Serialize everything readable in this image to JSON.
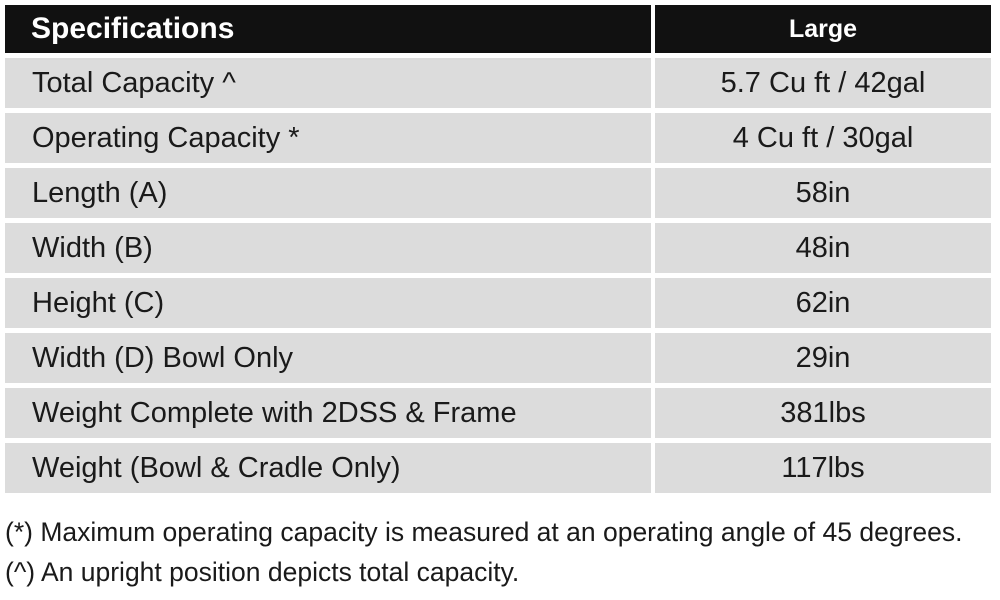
{
  "table": {
    "header": {
      "specifications": "Specifications",
      "size": "Large"
    },
    "rows": [
      {
        "label": "Total Capacity ^",
        "value": "5.7 Cu ft / 42gal"
      },
      {
        "label": "Operating Capacity *",
        "value": "4 Cu ft / 30gal"
      },
      {
        "label": "Length (A)",
        "value": "58in"
      },
      {
        "label": "Width (B)",
        "value": "48in"
      },
      {
        "label": "Height (C)",
        "value": "62in"
      },
      {
        "label": "Width (D) Bowl Only",
        "value": "29in"
      },
      {
        "label": "Weight Complete with 2DSS & Frame",
        "value": "381lbs"
      },
      {
        "label": "Weight (Bowl & Cradle Only)",
        "value": "117lbs"
      }
    ]
  },
  "footnotes": [
    "(*) Maximum operating capacity is measured at an operating angle of 45 degrees.",
    "(^) An upright position depicts total capacity."
  ],
  "colors": {
    "header_bg": "#111111",
    "row_bg": "#dcdcdc",
    "text": "#1a1a1a"
  }
}
